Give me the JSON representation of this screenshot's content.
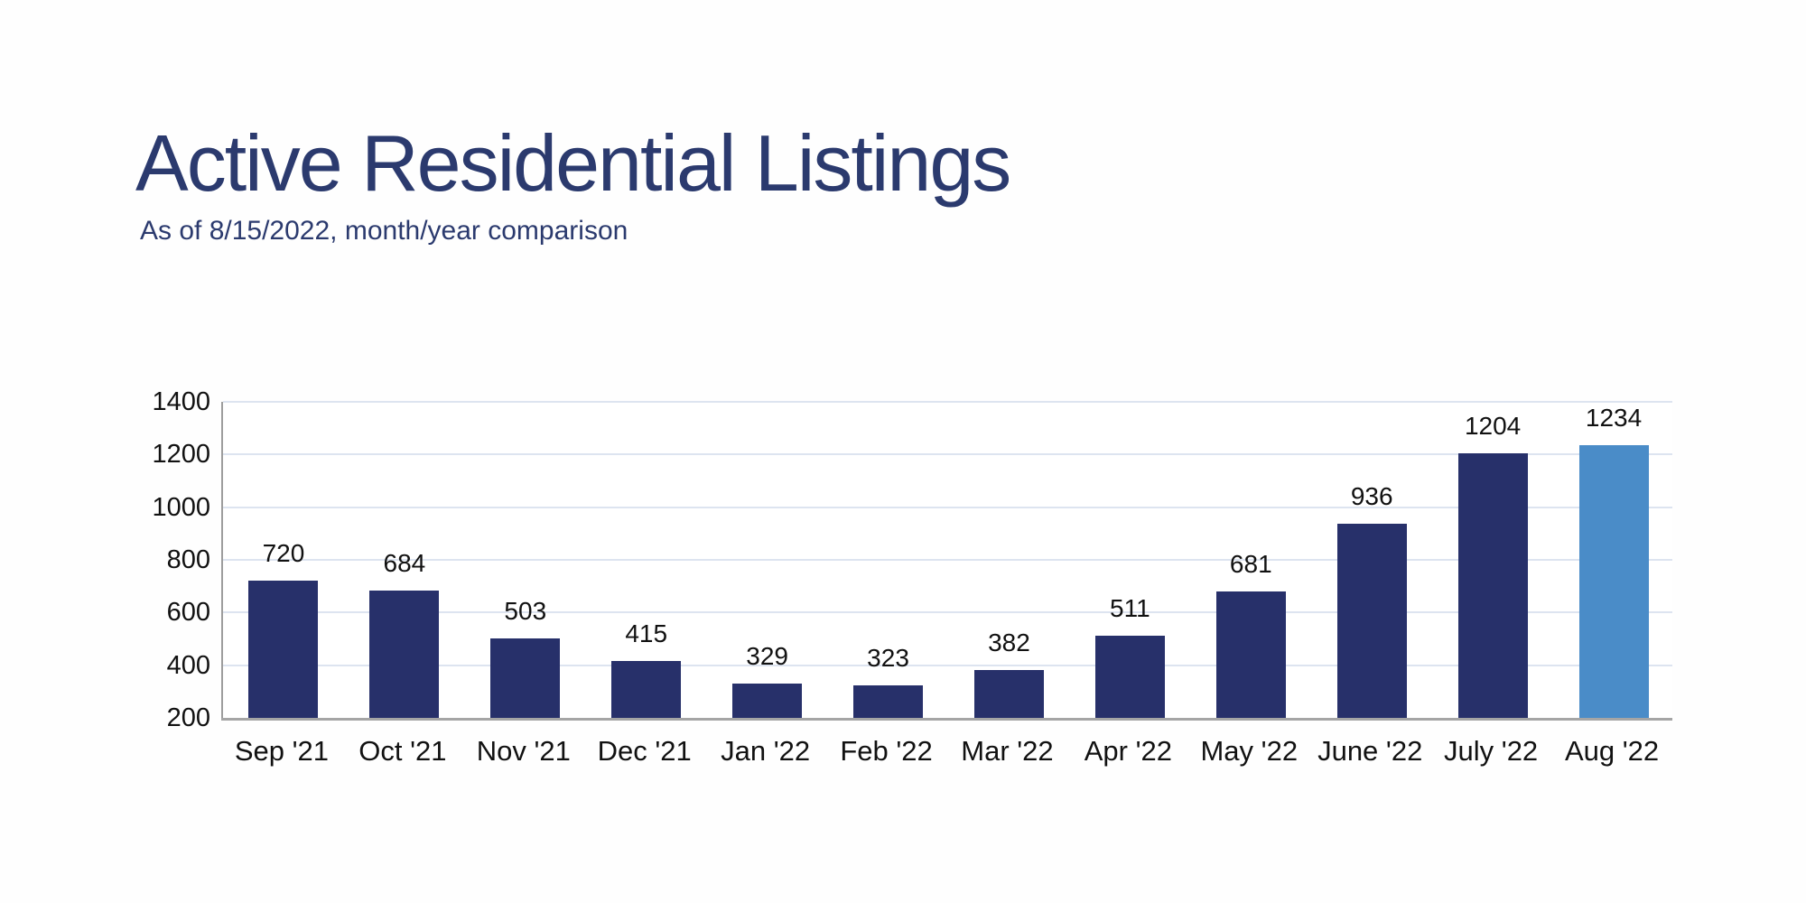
{
  "header": {
    "title": "Active Residential Listings",
    "subtitle": "As of 8/15/2022, month/year comparison"
  },
  "chart_data": {
    "type": "bar",
    "title": "Active Residential Listings",
    "subtitle": "As of 8/15/2022, month/year comparison",
    "categories": [
      "Sep '21",
      "Oct '21",
      "Nov '21",
      "Dec '21",
      "Jan '22",
      "Feb '22",
      "Mar '22",
      "Apr '22",
      "May '22",
      "June '22",
      "July '22",
      "Aug '22"
    ],
    "values": [
      720,
      684,
      503,
      415,
      329,
      323,
      382,
      511,
      681,
      936,
      1204,
      1234
    ],
    "highlight_index": 11,
    "ylim": [
      200,
      1400
    ],
    "yticks": [
      200,
      400,
      600,
      800,
      1000,
      1200,
      1400
    ],
    "xlabel": "",
    "ylabel": "",
    "grid": true,
    "legend": "none",
    "colors": {
      "bar": "#27306a",
      "highlight": "#4a8cc8",
      "title": "#2b3a6e",
      "gridline": "#dde4f0",
      "axis": "#9d9d9d",
      "label": "#111111"
    }
  }
}
